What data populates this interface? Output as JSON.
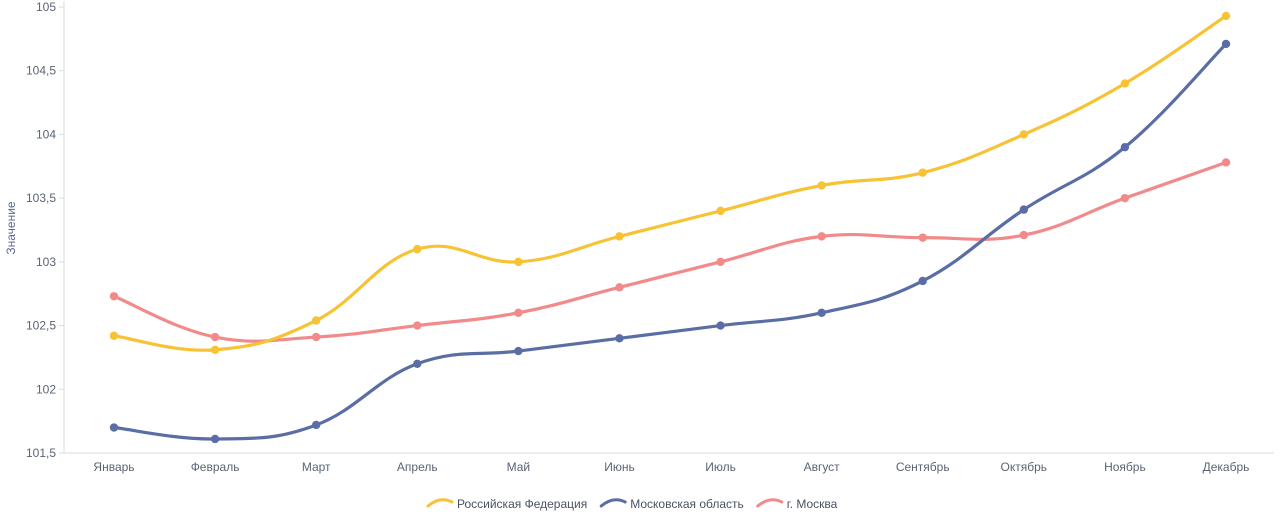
{
  "chart_data": {
    "type": "line",
    "title": "",
    "xlabel": "",
    "ylabel": "Значение",
    "ylim": [
      101.5,
      105
    ],
    "yticks": [
      "101,5",
      "102",
      "102,5",
      "103",
      "103,5",
      "104",
      "104,5",
      "105"
    ],
    "yticks_values": [
      101.5,
      102,
      102.5,
      103,
      103.5,
      104,
      104.5,
      105
    ],
    "categories": [
      "Январь",
      "Февраль",
      "Март",
      "Апрель",
      "Май",
      "Июнь",
      "Июль",
      "Август",
      "Сентябрь",
      "Октябрь",
      "Ноябрь",
      "Декабрь"
    ],
    "legend_position": "bottom-center",
    "grid": false,
    "series": [
      {
        "name": "Российская Федерация",
        "color": "#f7c233",
        "values": [
          102.42,
          102.31,
          102.54,
          103.1,
          103.0,
          103.2,
          103.4,
          103.6,
          103.7,
          104.0,
          104.4,
          104.93
        ]
      },
      {
        "name": "Московская область",
        "color": "#5a6ea5",
        "values": [
          101.7,
          101.61,
          101.72,
          102.2,
          102.3,
          102.4,
          102.5,
          102.6,
          102.85,
          103.41,
          103.9,
          104.71
        ]
      },
      {
        "name": "г. Москва",
        "color": "#f28a8a",
        "values": [
          102.73,
          102.41,
          102.41,
          102.5,
          102.6,
          102.8,
          103.0,
          103.2,
          103.19,
          103.21,
          103.5,
          103.78
        ]
      }
    ]
  }
}
